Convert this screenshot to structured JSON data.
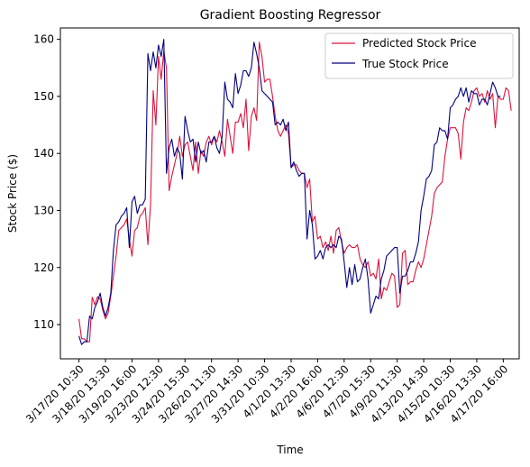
{
  "chart_data": {
    "type": "line",
    "title": "Gradient Boosting Regressor",
    "xlabel": "Time",
    "ylabel": "Stock Price ($)",
    "xlim": [
      -7,
      166
    ],
    "ylim": [
      104,
      162
    ],
    "y_ticks": [
      110,
      120,
      130,
      140,
      150,
      160
    ],
    "x_ticks": [
      {
        "i": 0,
        "label": "3/17/20 10:30"
      },
      {
        "i": 10,
        "label": "3/18/20 13:30"
      },
      {
        "i": 20,
        "label": "3/19/20 16:00"
      },
      {
        "i": 30,
        "label": "3/23/20 12:30"
      },
      {
        "i": 40,
        "label": "3/24/20 15:30"
      },
      {
        "i": 50,
        "label": "3/26/20 11:30"
      },
      {
        "i": 60,
        "label": "3/27/20 14:30"
      },
      {
        "i": 70,
        "label": "3/31/20 10:30"
      },
      {
        "i": 80,
        "label": "4/1/20 13:30"
      },
      {
        "i": 90,
        "label": "4/2/20 16:00"
      },
      {
        "i": 100,
        "label": "4/6/20 12:30"
      },
      {
        "i": 110,
        "label": "4/7/20 15:30"
      },
      {
        "i": 120,
        "label": "4/9/20 11:30"
      },
      {
        "i": 130,
        "label": "4/13/20 14:30"
      },
      {
        "i": 140,
        "label": "4/15/20 10:30"
      },
      {
        "i": 150,
        "label": "4/16/20 13:30"
      },
      {
        "i": 160,
        "label": "4/17/20 16:00"
      }
    ],
    "legend_position": "top-right",
    "grid": false,
    "series": [
      {
        "name": "Predicted Stock Price",
        "color": "#dc143c",
        "values": [
          111.0,
          107.5,
          107.5,
          107.0,
          107.0,
          114.8,
          113.5,
          114.9,
          114.5,
          112.5,
          111.0,
          112.0,
          115.0,
          118.5,
          122.0,
          126.5,
          127.0,
          127.5,
          128.5,
          125.0,
          122.0,
          126.5,
          127.0,
          129.0,
          129.5,
          130.5,
          124.0,
          131.0,
          151.0,
          145.0,
          157.0,
          153.0,
          158.0,
          155.0,
          133.5,
          136.0,
          138.0,
          140.0,
          143.0,
          139.5,
          141.5,
          142.0,
          139.5,
          137.0,
          142.0,
          136.5,
          140.5,
          139.5,
          142.0,
          143.0,
          141.5,
          143.0,
          142.0,
          144.0,
          142.0,
          139.5,
          146.0,
          143.0,
          140.0,
          145.5,
          145.5,
          147.0,
          144.5,
          149.5,
          140.5,
          146.5,
          148.0,
          145.8,
          159.5,
          157.0,
          152.5,
          153.0,
          153.0,
          150.0,
          146.5,
          144.0,
          143.0,
          144.0,
          145.0,
          143.5,
          137.5,
          138.0,
          138.0,
          137.0,
          136.5,
          136.5,
          134.0,
          135.5,
          128.0,
          129.0,
          125.0,
          125.5,
          123.5,
          124.5,
          123.0,
          125.5,
          122.5,
          126.5,
          127.0,
          124.5,
          122.5,
          123.5,
          124.0,
          123.5,
          123.5,
          124.0,
          121.5,
          120.5,
          120.0,
          121.0,
          118.5,
          119.0,
          118.0,
          121.5,
          114.5,
          116.5,
          116.0,
          117.5,
          119.0,
          118.5,
          113.0,
          113.5,
          122.5,
          123.0,
          117.0,
          117.5,
          117.5,
          119.5,
          121.0,
          120.0,
          121.5,
          124.0,
          126.5,
          129.0,
          133.0,
          134.0,
          134.5,
          135.0,
          139.5,
          142.5,
          144.5,
          144.5,
          144.5,
          143.5,
          139.0,
          145.5,
          148.0,
          147.5,
          149.0,
          151.0,
          151.5,
          150.0,
          150.5,
          149.0,
          151.0,
          149.5,
          150.5,
          144.5,
          150.0,
          149.5,
          149.5,
          151.5,
          151.0,
          147.5
        ]
      },
      {
        "name": "True Stock Price",
        "color": "#000080",
        "values": [
          108.0,
          106.5,
          107.0,
          107.0,
          111.5,
          111.0,
          113.0,
          114.0,
          115.5,
          113.0,
          111.5,
          113.0,
          115.5,
          123.0,
          127.5,
          128.0,
          129.0,
          129.5,
          130.5,
          123.5,
          131.5,
          132.5,
          129.5,
          131.0,
          131.0,
          132.0,
          157.5,
          154.5,
          157.8,
          155.0,
          159.0,
          157.0,
          160.0,
          136.5,
          141.0,
          142.5,
          139.5,
          141.0,
          140.0,
          135.5,
          146.5,
          144.0,
          142.0,
          142.5,
          138.5,
          142.0,
          140.0,
          140.5,
          138.5,
          142.0,
          142.0,
          143.0,
          141.0,
          140.0,
          143.0,
          152.5,
          149.5,
          149.0,
          148.0,
          154.0,
          150.5,
          152.0,
          154.5,
          154.5,
          153.5,
          155.0,
          159.5,
          157.5,
          155.0,
          151.0,
          150.5,
          150.0,
          149.5,
          149.0,
          145.0,
          145.5,
          145.0,
          146.0,
          144.0,
          145.5,
          137.5,
          138.5,
          137.0,
          136.0,
          136.5,
          136.5,
          125.0,
          130.0,
          127.5,
          121.5,
          122.0,
          123.0,
          121.5,
          123.5,
          124.0,
          123.5,
          124.0,
          123.5,
          125.5,
          125.0,
          121.0,
          116.5,
          120.0,
          117.0,
          120.5,
          117.5,
          118.0,
          120.0,
          121.5,
          118.0,
          112.0,
          113.5,
          115.0,
          114.5,
          118.0,
          119.5,
          122.0,
          122.5,
          123.0,
          123.5,
          123.5,
          115.5,
          118.5,
          118.5,
          119.5,
          121.0,
          121.0,
          122.5,
          124.5,
          130.0,
          132.5,
          135.5,
          136.0,
          137.0,
          141.5,
          142.0,
          144.5,
          144.0,
          144.0,
          142.5,
          148.0,
          148.5,
          149.5,
          150.0,
          151.5,
          150.0,
          151.5,
          149.0,
          151.0,
          150.5,
          150.5,
          148.5,
          149.5,
          149.5,
          148.5,
          150.5,
          152.5,
          151.5,
          150.0,
          150.0
        ]
      }
    ]
  }
}
